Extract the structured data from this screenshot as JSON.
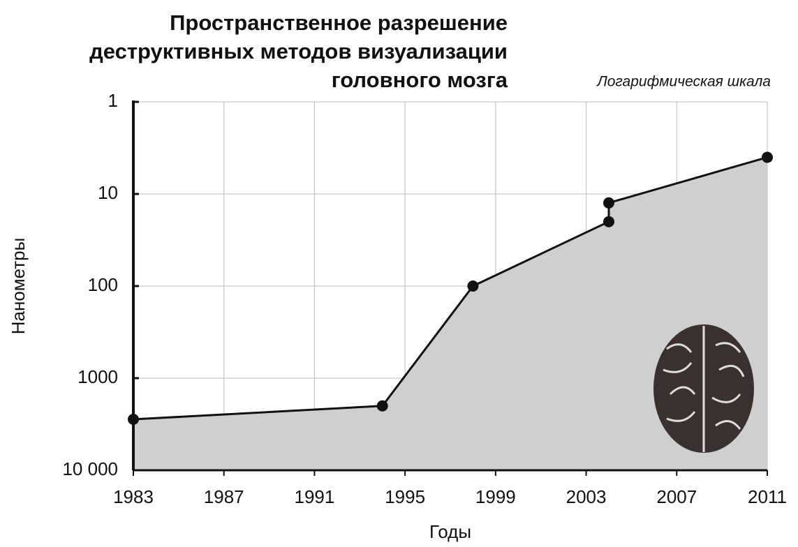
{
  "chart_data": {
    "type": "line",
    "title": [
      "Пространственное разрешение",
      "деструктивных методов визуализации",
      "головного мозга"
    ],
    "subtitle": "Логарифмическая шкала",
    "xlabel": "Годы",
    "ylabel": "Нанометры",
    "x": [
      1983,
      1994,
      1998,
      2004,
      2004,
      2011
    ],
    "series": [
      {
        "color": "#111111",
        "values": [
          2800,
          2000,
          100,
          20,
          12.5,
          4
        ]
      }
    ],
    "area_color": "#cfcfcf",
    "xlim": [
      1983,
      2011
    ],
    "xticks": [
      1983,
      1987,
      1991,
      1995,
      1999,
      2003,
      2007,
      2011
    ],
    "ylim": [
      10000,
      1
    ],
    "yscale": "log",
    "yticks": [
      1,
      10,
      100,
      1000,
      {
        "value": 10000,
        "label": "10 000"
      }
    ],
    "grid": true
  }
}
